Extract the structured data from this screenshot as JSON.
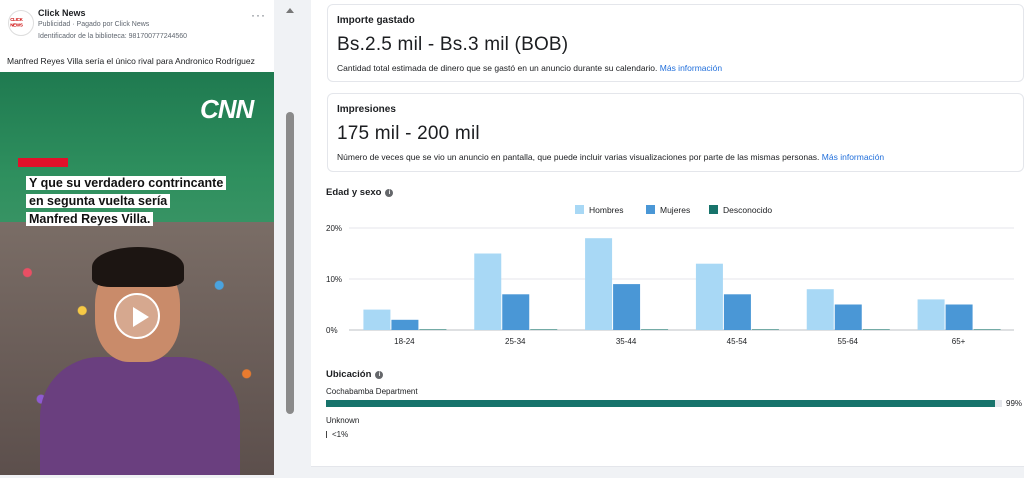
{
  "ad": {
    "page_name": "Click News",
    "meta": "Publicidad · Pagado por Click News",
    "library_id": "Identificador de la biblioteca: 981700777244560",
    "more": "···",
    "caption": "Manfred Reyes Villa sería el único rival para Andronico Rodríguez",
    "avatar_text": "CLICK NEWS",
    "creative": {
      "logo": "CNN",
      "headline_lines": [
        "Y que su verdadero contrincante",
        "en segunta vuelta sería",
        "Manfred Reyes Villa."
      ]
    }
  },
  "spend": {
    "label": "Importe gastado",
    "value": "Bs.2.5 mil - Bs.3 mil (BOB)",
    "description": "Cantidad total estimada de dinero que se gastó en un anuncio durante su calendario.",
    "link": "Más información"
  },
  "impressions": {
    "label": "Impresiones",
    "value": "175 mil - 200 mil",
    "description": "Número de veces que se vio un anuncio en pantalla, que puede incluir varias visualizaciones por parte de las mismas personas.",
    "link": "Más información"
  },
  "age_gender": {
    "title": "Edad y sexo"
  },
  "location": {
    "title": "Ubicación",
    "rows": [
      {
        "name": "Cochabamba Department",
        "value": 99,
        "label": "99%"
      },
      {
        "name": "Unknown",
        "value": 0.5,
        "label": "<1%"
      }
    ],
    "bar_color": "#17736b"
  },
  "chart_data": {
    "type": "bar",
    "categories": [
      "18-24",
      "25-34",
      "35-44",
      "45-54",
      "55-64",
      "65+"
    ],
    "series": [
      {
        "name": "Hombres",
        "color": "#a8d8f5",
        "values": [
          4,
          15,
          18,
          13,
          8,
          6
        ]
      },
      {
        "name": "Mujeres",
        "color": "#4a97d6",
        "values": [
          2,
          7,
          9,
          7,
          5,
          5
        ]
      },
      {
        "name": "Desconocido",
        "color": "#17736b",
        "values": [
          0.1,
          0.1,
          0.1,
          0.1,
          0.1,
          0.1
        ]
      }
    ],
    "ylim": [
      0,
      20
    ],
    "yticks": [
      0,
      10,
      20
    ],
    "ytick_labels": [
      "0%",
      "10%",
      "20%"
    ],
    "legend_position": "top-center",
    "grid": true
  }
}
